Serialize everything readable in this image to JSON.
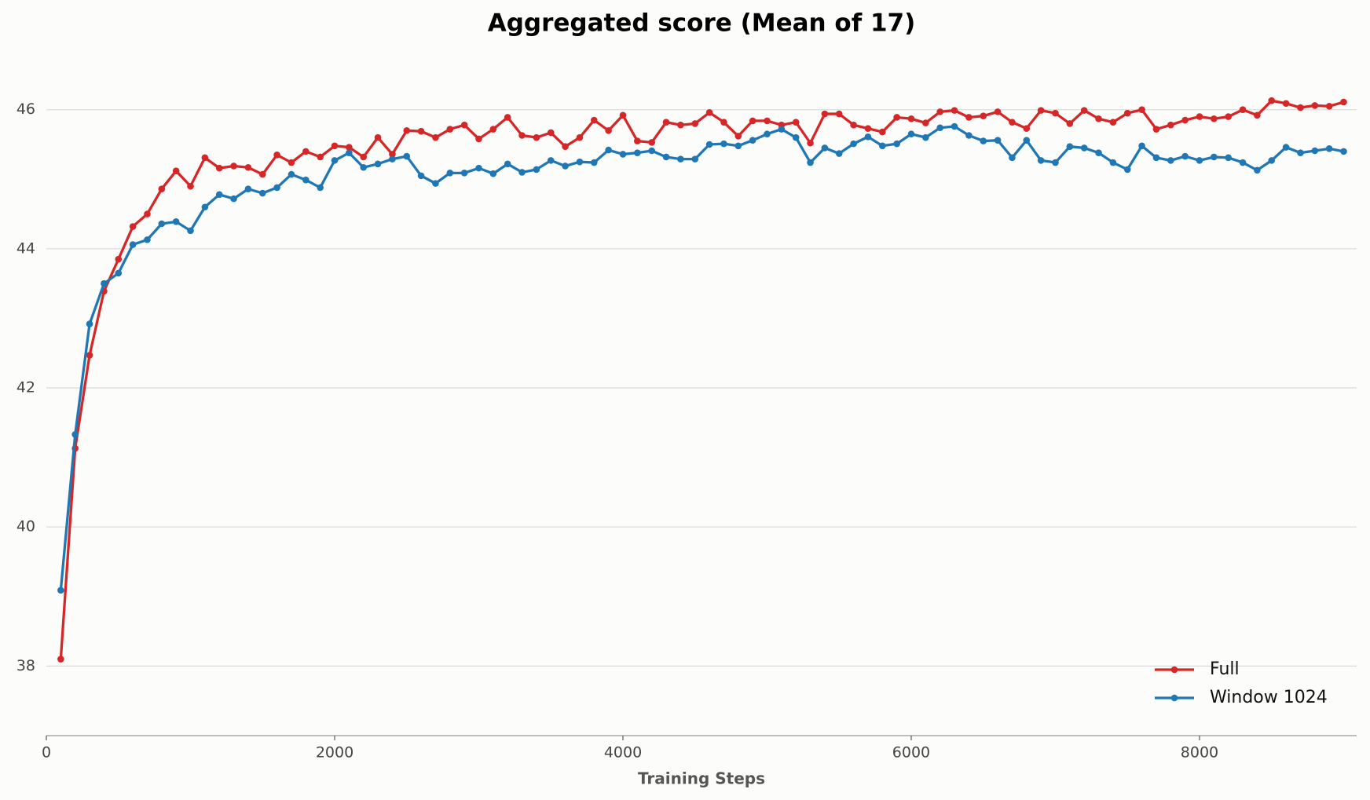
{
  "chart_data": {
    "type": "line",
    "title": "Aggregated score (Mean of 17)",
    "xlabel": "Training Steps",
    "x": [
      100,
      200,
      300,
      400,
      500,
      600,
      700,
      800,
      900,
      1000,
      1100,
      1200,
      1300,
      1400,
      1500,
      1600,
      1700,
      1800,
      1900,
      2000,
      2100,
      2200,
      2300,
      2400,
      2500,
      2600,
      2700,
      2800,
      2900,
      3000,
      3100,
      3200,
      3300,
      3400,
      3500,
      3600,
      3700,
      3800,
      3900,
      4000,
      4100,
      4200,
      4300,
      4400,
      4500,
      4600,
      4700,
      4800,
      4900,
      5000,
      5100,
      5200,
      5300,
      5400,
      5500,
      5600,
      5700,
      5800,
      5900,
      6000,
      6100,
      6200,
      6300,
      6400,
      6500,
      6600,
      6700,
      6800,
      6900,
      7000,
      7100,
      7200,
      7300,
      7400,
      7500,
      7600,
      7700,
      7800,
      7900,
      8000,
      8100,
      8200,
      8300,
      8400,
      8500,
      8600,
      8700,
      8800,
      8900,
      9000
    ],
    "series": [
      {
        "name": "Full",
        "color": "#d62728",
        "values": [
          38.1,
          41.13,
          42.47,
          43.39,
          43.85,
          44.32,
          44.5,
          44.86,
          45.12,
          44.9,
          45.31,
          45.16,
          45.19,
          45.17,
          45.07,
          45.35,
          45.24,
          45.4,
          45.32,
          45.48,
          45.46,
          45.32,
          45.6,
          45.36,
          45.7,
          45.69,
          45.6,
          45.72,
          45.78,
          45.58,
          45.72,
          45.89,
          45.63,
          45.6,
          45.67,
          45.47,
          45.6,
          45.85,
          45.7,
          45.92,
          45.55,
          45.53,
          45.82,
          45.78,
          45.8,
          45.96,
          45.82,
          45.62,
          45.84,
          45.84,
          45.78,
          45.82,
          45.52,
          45.94,
          45.94,
          45.78,
          45.73,
          45.68,
          45.89,
          45.87,
          45.81,
          45.97,
          45.99,
          45.89,
          45.91,
          45.97,
          45.82,
          45.73,
          45.99,
          45.95,
          45.8,
          45.99,
          45.87,
          45.82,
          45.95,
          46.0,
          45.72,
          45.78,
          45.85,
          45.9,
          45.87,
          45.9,
          46.0,
          45.92,
          46.13,
          46.09,
          46.03,
          46.06,
          46.05,
          46.11
        ]
      },
      {
        "name": "Window 1024",
        "color": "#1f77b4",
        "values": [
          39.09,
          41.33,
          42.92,
          43.5,
          43.65,
          44.06,
          44.13,
          44.36,
          44.39,
          44.26,
          44.6,
          44.78,
          44.72,
          44.86,
          44.8,
          44.88,
          45.07,
          44.99,
          44.88,
          45.27,
          45.38,
          45.17,
          45.22,
          45.29,
          45.33,
          45.05,
          44.94,
          45.09,
          45.09,
          45.16,
          45.08,
          45.22,
          45.1,
          45.14,
          45.27,
          45.19,
          45.25,
          45.24,
          45.42,
          45.36,
          45.38,
          45.41,
          45.32,
          45.29,
          45.29,
          45.5,
          45.51,
          45.48,
          45.56,
          45.65,
          45.72,
          45.6,
          45.24,
          45.45,
          45.37,
          45.51,
          45.61,
          45.48,
          45.51,
          45.65,
          45.6,
          45.74,
          45.76,
          45.63,
          45.55,
          45.56,
          45.31,
          45.56,
          45.27,
          45.24,
          45.47,
          45.45,
          45.38,
          45.24,
          45.14,
          45.48,
          45.31,
          45.27,
          45.33,
          45.27,
          45.32,
          45.31,
          45.24,
          45.13,
          45.27,
          45.46,
          45.38,
          45.41,
          45.44,
          45.4
        ]
      }
    ],
    "xlim": [
      0,
      9090
    ],
    "ylim": [
      37,
      46.9
    ],
    "xticks": [
      0,
      2000,
      4000,
      6000,
      8000
    ],
    "yticks": [
      38,
      40,
      42,
      44,
      46
    ],
    "grid": true,
    "legend": "lower right"
  }
}
